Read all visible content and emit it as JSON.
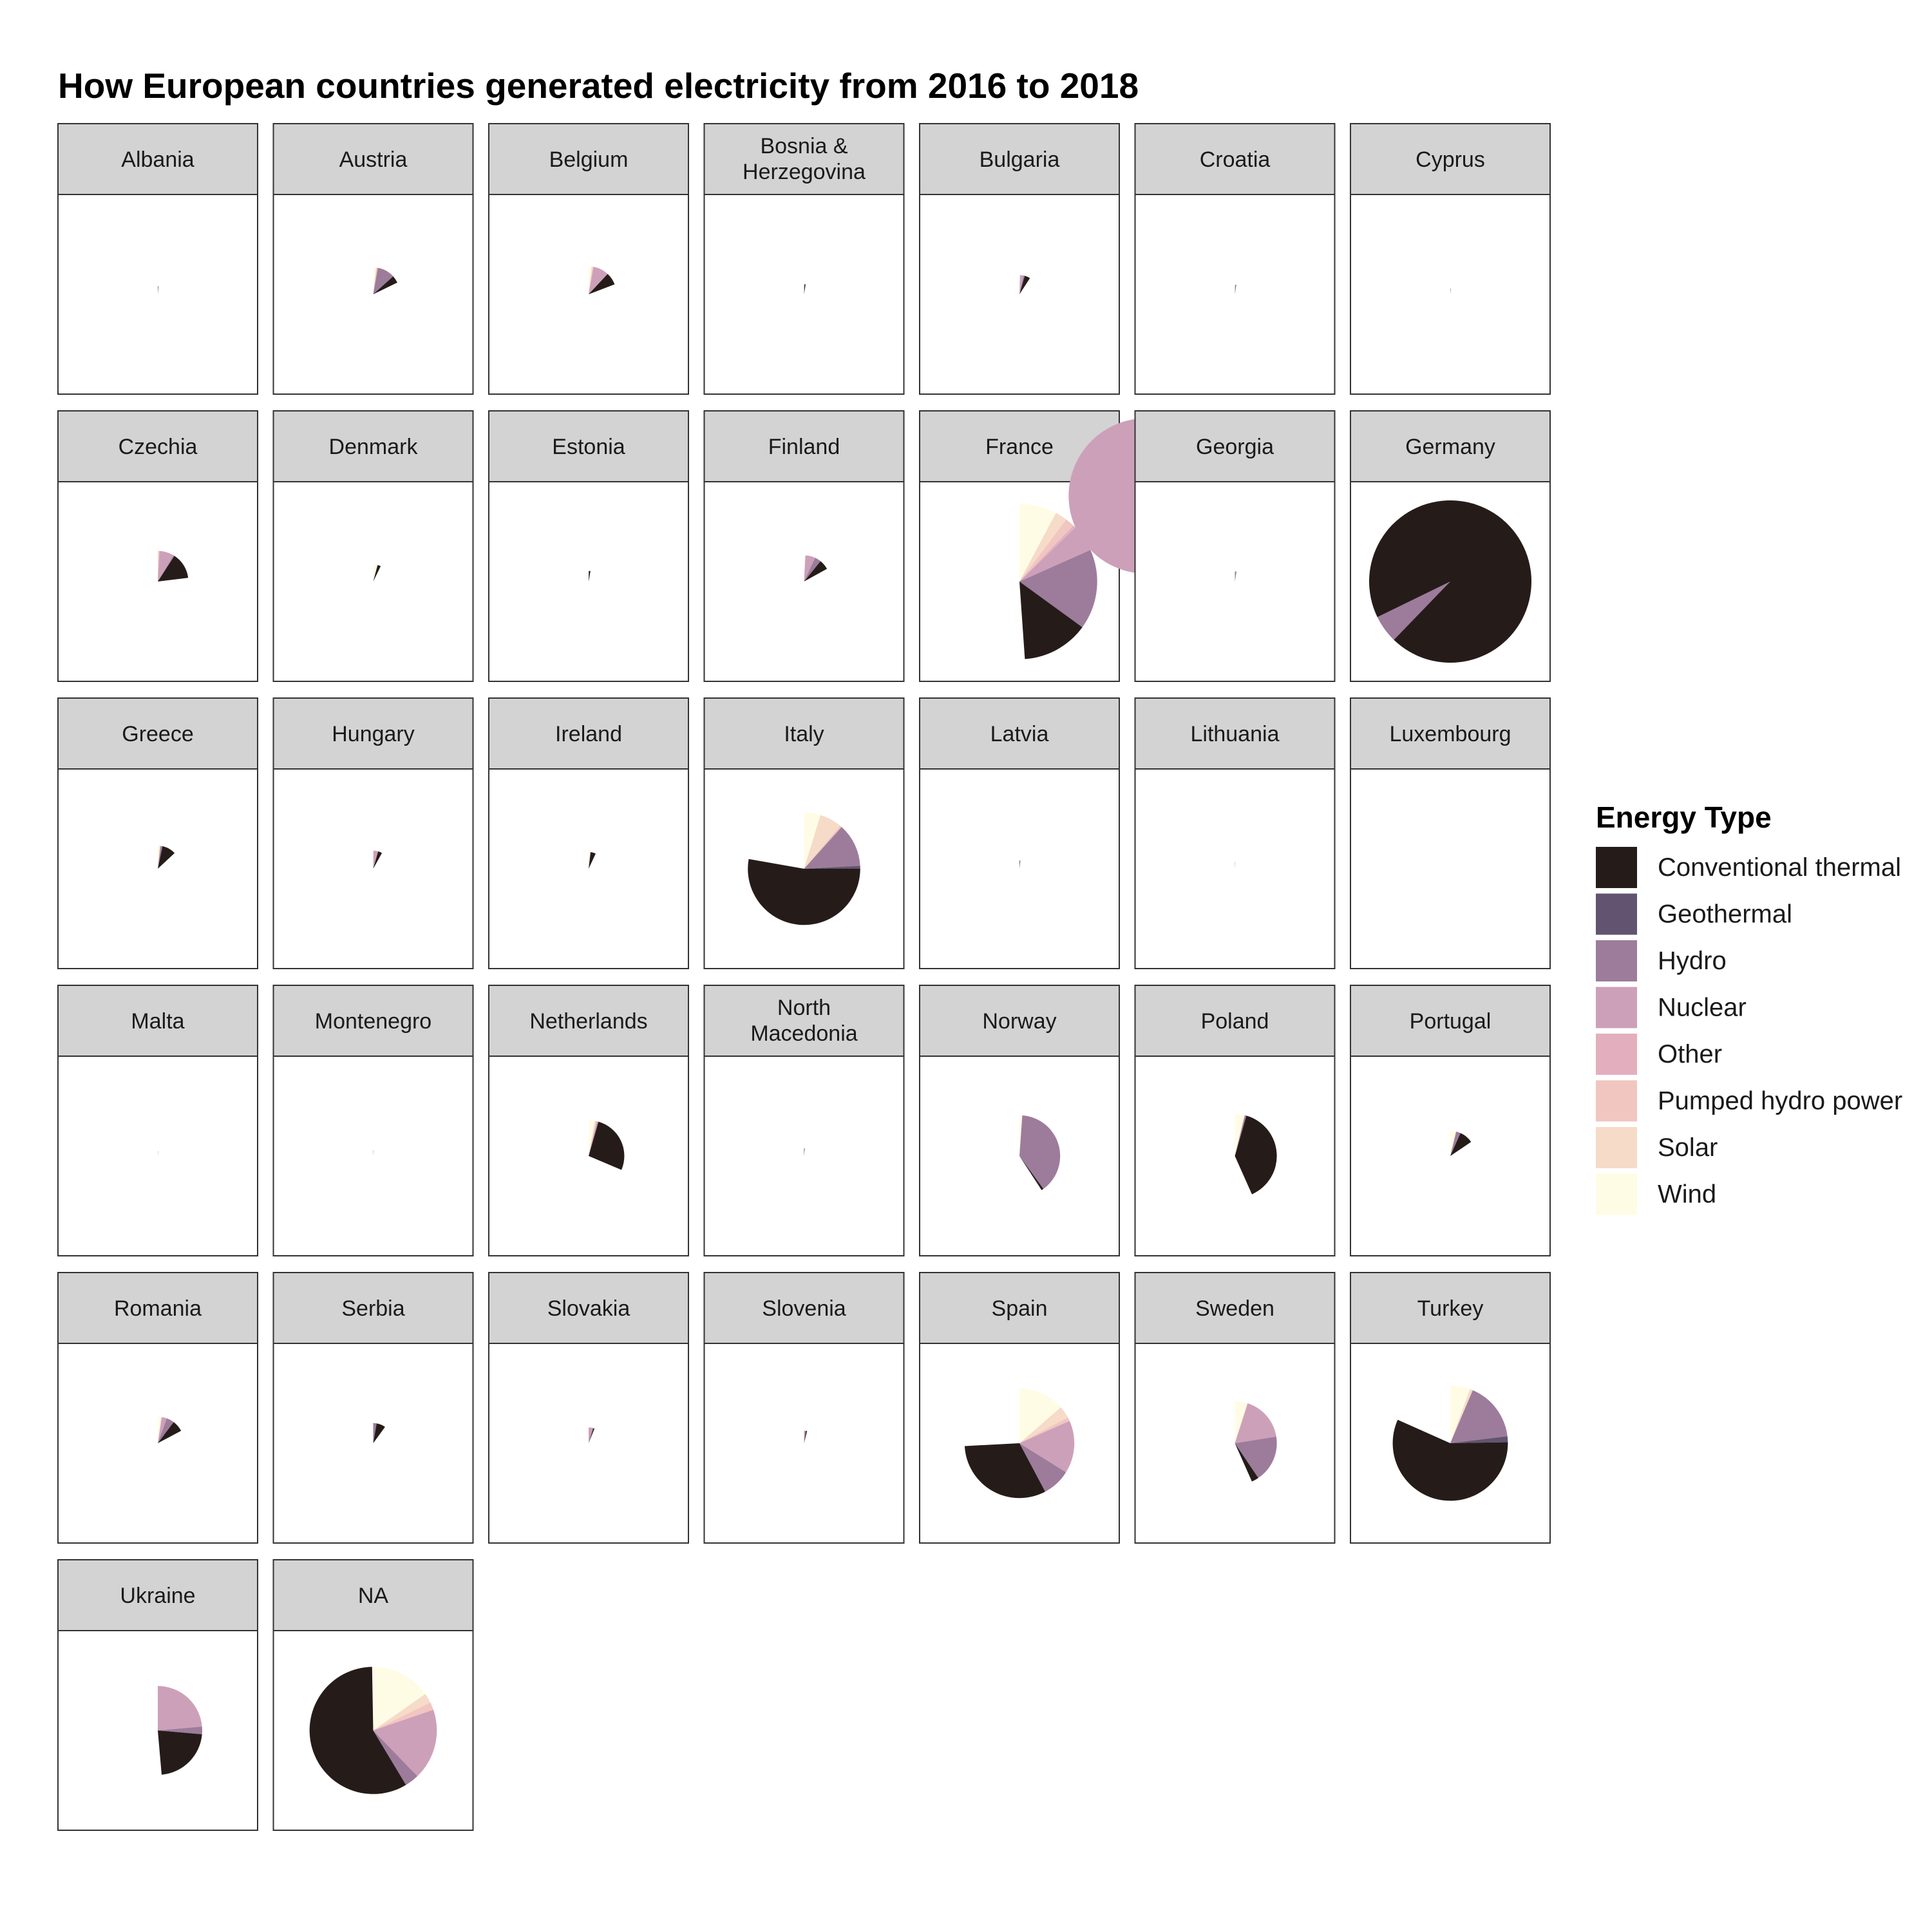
{
  "chart_data": {
    "type": "pie",
    "title": "How European countries generated electricity from 2016 to 2018",
    "legend": {
      "title": "Energy Type",
      "position": "right",
      "entries": [
        {
          "name": "Conventional thermal",
          "color": "#251c19"
        },
        {
          "name": "Geothermal",
          "color": "#625470"
        },
        {
          "name": "Hydro",
          "color": "#9d7c9b"
        },
        {
          "name": "Nuclear",
          "color": "#cda0b9"
        },
        {
          "name": "Other",
          "color": "#e3afbe"
        },
        {
          "name": "Pumped hydro power",
          "color": "#f1c6c0"
        },
        {
          "name": "Solar",
          "color": "#f6dbc8"
        },
        {
          "name": "Wind",
          "color": "#fffce6"
        }
      ]
    },
    "total_degrees": 360,
    "facets": [
      {
        "label": [
          "Albania"
        ],
        "values": [
          0,
          0,
          6,
          0,
          0,
          0,
          0,
          0
        ]
      },
      {
        "label": [
          "Austria"
        ],
        "values": [
          16,
          0,
          38,
          0,
          0,
          3,
          1,
          6
        ]
      },
      {
        "label": [
          "Belgium"
        ],
        "values": [
          26,
          0,
          0,
          33,
          0,
          1,
          3,
          6
        ]
      },
      {
        "label": [
          "Bosnia &",
          "Herzegovina"
        ],
        "values": [
          6,
          0,
          3,
          0,
          0,
          0,
          0,
          0
        ]
      },
      {
        "label": [
          "Bulgaria"
        ],
        "values": [
          17,
          0,
          4,
          10,
          0,
          0,
          1,
          1
        ]
      },
      {
        "label": [
          "Croatia"
        ],
        "values": [
          2,
          0,
          5,
          0,
          0,
          0,
          0,
          1
        ]
      },
      {
        "label": [
          "Cyprus"
        ],
        "values": [
          3,
          0,
          0,
          0,
          0,
          0,
          0,
          0
        ]
      },
      {
        "label": [
          "Czechia"
        ],
        "values": [
          50,
          0,
          2,
          28,
          0,
          1,
          2,
          0
        ]
      },
      {
        "label": [
          "Denmark"
        ],
        "values": [
          11,
          0,
          0,
          0,
          0,
          0,
          1,
          14
        ]
      },
      {
        "label": [
          "Estonia"
        ],
        "values": [
          9,
          0,
          0,
          0,
          0,
          0,
          0,
          1
        ]
      },
      {
        "label": [
          "Finland"
        ],
        "values": [
          22,
          0,
          14,
          22,
          0,
          0,
          0,
          3
        ]
      },
      {
        "label": [
          "France"
        ],
        "values": [
          50,
          0,
          60,
          380,
          2,
          7,
          9,
          28
        ]
      },
      {
        "label": [
          "Georgia"
        ],
        "values": [
          1,
          0,
          8,
          0,
          0,
          0,
          0,
          0
        ]
      },
      {
        "label": [
          "Germany"
        ],
        "values": [
          340,
          0,
          22,
          73,
          4,
          7,
          38,
          100
        ]
      },
      {
        "label": [
          "Greece"
        ],
        "values": [
          35,
          0,
          5,
          0,
          0,
          0,
          3,
          4
        ]
      },
      {
        "label": [
          "Hungary"
        ],
        "values": [
          13,
          0,
          0,
          15,
          0,
          0,
          1,
          0
        ]
      },
      {
        "label": [
          "Ireland"
        ],
        "values": [
          18,
          0,
          1,
          0,
          0,
          0,
          0,
          6
        ]
      },
      {
        "label": [
          "Italy"
        ],
        "values": [
          190,
          3,
          45,
          0,
          0,
          2,
          23,
          17
        ]
      },
      {
        "label": [
          "Latvia"
        ],
        "values": [
          3,
          0,
          3,
          0,
          0,
          0,
          0,
          0
        ]
      },
      {
        "label": [
          "Lithuania"
        ],
        "values": [
          1,
          0,
          1,
          0,
          0,
          1,
          0,
          1
        ]
      },
      {
        "label": [
          "Luxembourg"
        ],
        "values": [
          0,
          0,
          0,
          0,
          0,
          1,
          0,
          0
        ]
      },
      {
        "label": [
          "Malta"
        ],
        "values": [
          2,
          0,
          0,
          0,
          0,
          0,
          0,
          0
        ]
      },
      {
        "label": [
          "Montenegro"
        ],
        "values": [
          1,
          0,
          2,
          0,
          0,
          0,
          0,
          0
        ]
      },
      {
        "label": [
          "Netherlands"
        ],
        "values": [
          97,
          0,
          0,
          3,
          0,
          0,
          3,
          10
        ]
      },
      {
        "label": [
          "North",
          "Macedonia"
        ],
        "values": [
          4,
          0,
          1,
          0,
          0,
          0,
          0,
          0
        ]
      },
      {
        "label": [
          "Norway"
        ],
        "values": [
          3,
          0,
          140,
          0,
          0,
          0,
          0,
          4
        ]
      },
      {
        "label": [
          "Poland"
        ],
        "values": [
          140,
          0,
          2,
          0,
          0,
          1,
          0,
          13
        ]
      },
      {
        "label": [
          "Portugal"
        ],
        "values": [
          32,
          0,
          10,
          0,
          0,
          1,
          1,
          12
        ]
      },
      {
        "label": [
          "Romania"
        ],
        "values": [
          25,
          0,
          17,
          11,
          0,
          0,
          2,
          7
        ]
      },
      {
        "label": [
          "Serbia"
        ],
        "values": [
          26,
          0,
          10,
          0,
          0,
          0,
          0,
          0
        ]
      },
      {
        "label": [
          "Slovakia"
        ],
        "values": [
          4,
          0,
          4,
          14,
          0,
          0,
          0,
          0
        ]
      },
      {
        "label": [
          "Slovenia"
        ],
        "values": [
          5,
          0,
          4,
          5,
          0,
          0,
          0,
          0
        ]
      },
      {
        "label": [
          "Spain"
        ],
        "values": [
          115,
          0,
          30,
          56,
          0,
          4,
          13,
          49
        ]
      },
      {
        "label": [
          "Sweden"
        ],
        "values": [
          10,
          0,
          65,
          63,
          0,
          0,
          1,
          17
        ]
      },
      {
        "label": [
          "Turkey"
        ],
        "values": [
          205,
          6,
          60,
          0,
          0,
          0,
          3,
          20
        ]
      },
      {
        "label": [
          "Ukraine"
        ],
        "values": [
          80,
          0,
          10,
          85,
          0,
          0,
          0,
          0
        ]
      },
      {
        "label": [
          "NA"
        ],
        "values": [
          210,
          0,
          13,
          65,
          0,
          7,
          9,
          55
        ]
      }
    ]
  }
}
